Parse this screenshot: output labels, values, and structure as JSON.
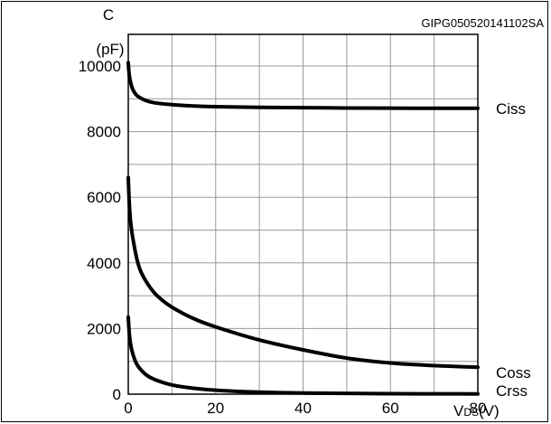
{
  "chart_data": {
    "type": "line",
    "figure_code": "GIPG050520141102SA",
    "ylabel_line1": "C",
    "ylabel_line2": "(pF)",
    "xlabel": {
      "main": "V",
      "sub": "DS",
      "unit": "(V)"
    },
    "xlim": [
      0,
      80
    ],
    "ylim": [
      0,
      10000
    ],
    "xticks": [
      0,
      20,
      40,
      60,
      80
    ],
    "xtick_labels": [
      "0",
      "20",
      "40",
      "60",
      "80"
    ],
    "yticks": [
      0,
      2000,
      4000,
      6000,
      8000,
      10000
    ],
    "ytick_labels": [
      "0",
      "2000",
      "4000",
      "6000",
      "8000",
      "10000"
    ],
    "grid": true,
    "series": [
      {
        "name": "Ciss",
        "x": [
          0,
          0.3,
          1,
          2,
          4,
          6,
          10,
          15,
          20,
          30,
          40,
          50,
          60,
          70,
          80
        ],
        "y": [
          10100,
          9650,
          9300,
          9100,
          8950,
          8880,
          8820,
          8780,
          8760,
          8740,
          8730,
          8720,
          8715,
          8712,
          8710
        ]
      },
      {
        "name": "Coss",
        "x": [
          0,
          0.2,
          0.5,
          1,
          2,
          3,
          5,
          7,
          10,
          15,
          20,
          30,
          40,
          50,
          60,
          70,
          80
        ],
        "y": [
          6600,
          5900,
          5300,
          4800,
          4100,
          3700,
          3250,
          2950,
          2650,
          2300,
          2050,
          1650,
          1350,
          1100,
          950,
          870,
          820
        ]
      },
      {
        "name": "Crss",
        "x": [
          0,
          0.2,
          0.5,
          1,
          2,
          4,
          6,
          10,
          15,
          20,
          30,
          40,
          60,
          80
        ],
        "y": [
          2350,
          1900,
          1550,
          1250,
          900,
          600,
          450,
          280,
          180,
          120,
          60,
          35,
          15,
          8
        ]
      }
    ]
  }
}
